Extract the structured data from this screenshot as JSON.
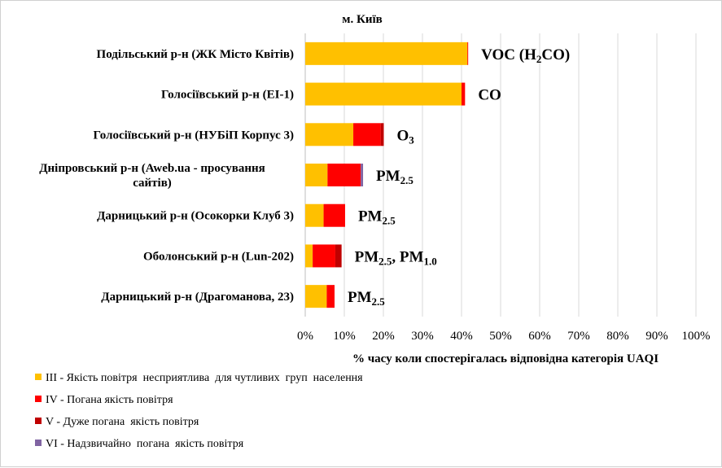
{
  "chart_data": {
    "type": "bar",
    "orientation": "horizontal",
    "stacked": true,
    "title": "м. Київ",
    "xlabel": "% часу коли спостерігалась відповідна категорія UAQI",
    "ylabel": "",
    "xlim": [
      0,
      100
    ],
    "x_ticks": [
      "0%",
      "10%",
      "20%",
      "30%",
      "40%",
      "50%",
      "60%",
      "70%",
      "80%",
      "90%",
      "100%"
    ],
    "grid": "vertical",
    "legend_position": "bottom-left",
    "categories": [
      [
        "Подільський р-н (ЖК Місто Квітів)"
      ],
      [
        "Голосіївський р-н (ЕІ-1)"
      ],
      [
        "Голосіївський р-н (НУБіП Корпус 3)"
      ],
      [
        "Дніпровський р-н (Aweb.ua - просування",
        "сайтів)"
      ],
      [
        "Дарницький р-н (Осокорки Клуб 3)"
      ],
      [
        "Оболонський р-н (Lun-202)"
      ],
      [
        "Дарницький р-н (Драгоманова, 23)"
      ]
    ],
    "annotations": [
      [
        {
          "t": "VOC (H"
        },
        {
          "t": "2",
          "sub": true
        },
        {
          "t": "CO)"
        }
      ],
      [
        {
          "t": "CO"
        }
      ],
      [
        {
          "t": "O"
        },
        {
          "t": "3",
          "sub": true
        }
      ],
      [
        {
          "t": "PM"
        },
        {
          "t": "2.5",
          "sub": true
        }
      ],
      [
        {
          "t": "PM"
        },
        {
          "t": "2.5",
          "sub": true
        }
      ],
      [
        {
          "t": "PM"
        },
        {
          "t": "2.5",
          "sub": true
        },
        {
          "t": ", PM"
        },
        {
          "t": "1.0",
          "sub": true
        }
      ],
      [
        {
          "t": "PM"
        },
        {
          "t": "2.5",
          "sub": true
        }
      ]
    ],
    "series": [
      {
        "name": "III - Якість повітря  несприятлива  для чутливих  груп  населення",
        "color": "#FFC000",
        "values": [
          41.5,
          40.0,
          12.3,
          5.7,
          4.7,
          1.9,
          5.5
        ]
      },
      {
        "name": "IV - Погана якість повітря",
        "color": "#FF0000",
        "values": [
          0.2,
          0.9,
          7.0,
          8.5,
          5.5,
          5.8,
          2.0
        ]
      },
      {
        "name": "V - Дуже погана  якість повітря",
        "color": "#C00000",
        "values": [
          0,
          0,
          0.8,
          0,
          0,
          1.6,
          0
        ]
      },
      {
        "name": "VI - Надзвичайно  погана  якість повітря",
        "color": "#8064A2",
        "values": [
          0,
          0,
          0,
          0.6,
          0,
          0,
          0
        ]
      }
    ]
  }
}
